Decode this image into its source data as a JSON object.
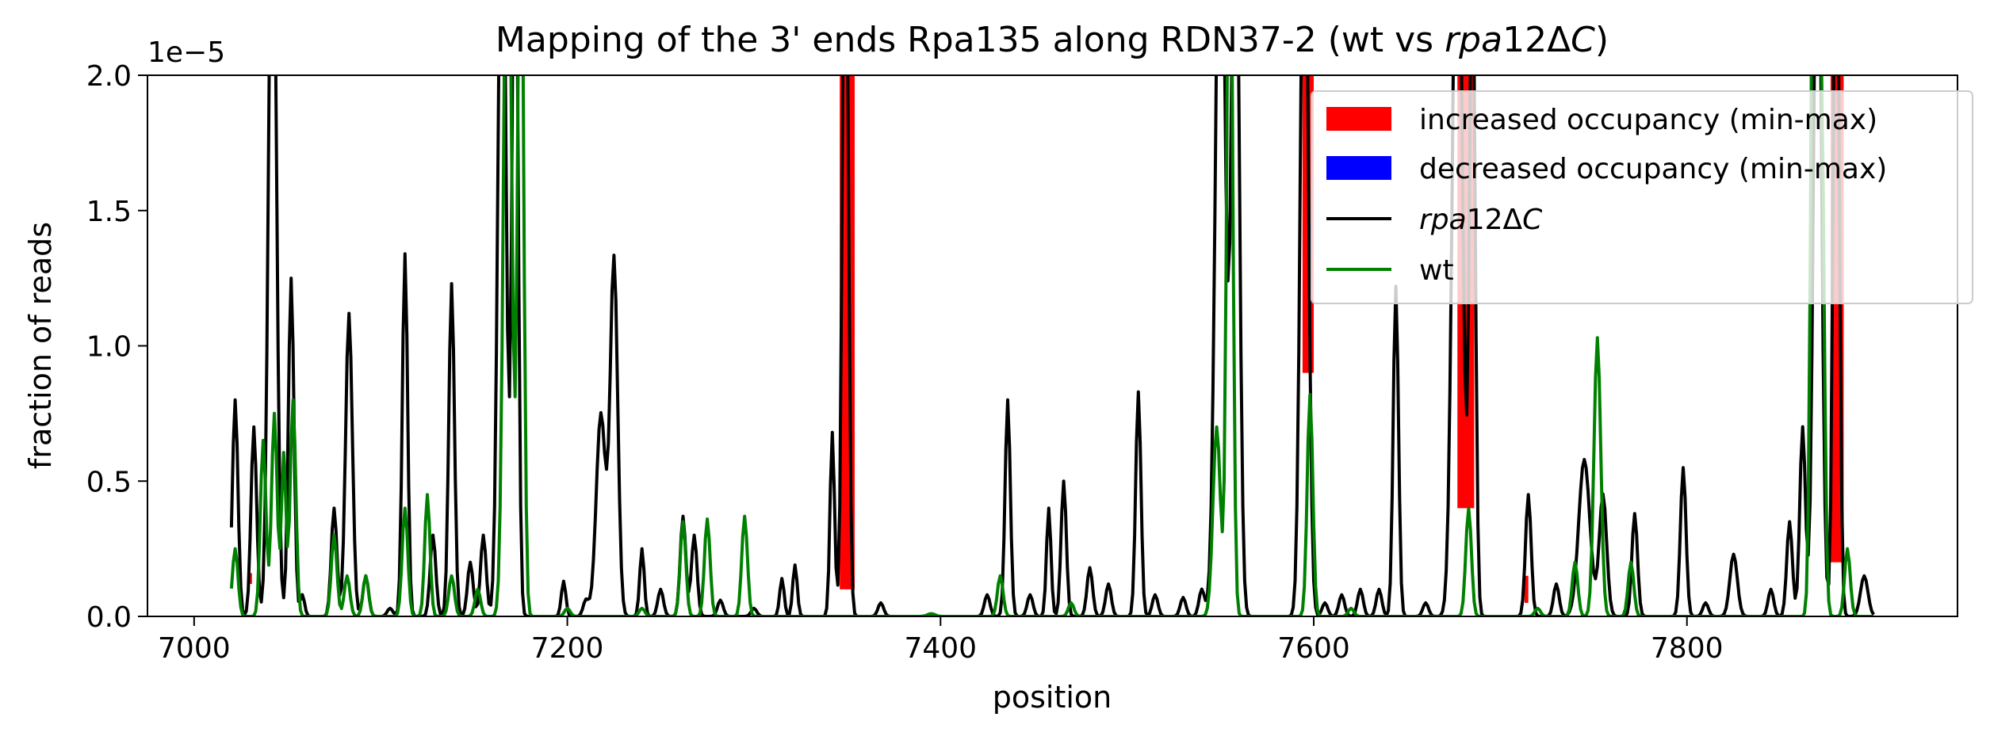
{
  "chart_data": {
    "type": "line",
    "title": "Mapping of the 3' ends Rpa135 along RDN37-2 (wt vs rpa12ΔC)",
    "title_parts": {
      "prefix": "Mapping of the 3' ends Rpa135 along RDN37-2 (wt vs ",
      "italic1": "rpa",
      "mid": "12Δ",
      "italic2": "C",
      "suffix": ")"
    },
    "xlabel": "position",
    "ylabel": "fraction of reads",
    "y_offset_label": "1e−5",
    "xlim": [
      6975,
      7945
    ],
    "ylim": [
      0,
      2.0
    ],
    "y_scale_factor": 1e-05,
    "xticks": [
      7000,
      7200,
      7400,
      7600,
      7800
    ],
    "yticks": [
      0.0,
      0.5,
      1.0,
      1.5,
      2.0
    ],
    "ytick_labels": [
      "0.0",
      "0.5",
      "1.0",
      "1.5",
      "2.0"
    ],
    "grid": false,
    "legend_position": "top-right",
    "legend": [
      {
        "label": "increased occupancy (min-max)",
        "kind": "patch",
        "color": "#ff0000"
      },
      {
        "label": "decreased occupancy (min-max)",
        "kind": "patch",
        "color": "#0000ff"
      },
      {
        "label_italic": "rpa",
        "label_rest": "12Δ",
        "label_italic2": "C",
        "kind": "line",
        "color": "#000000"
      },
      {
        "label": "wt",
        "kind": "line",
        "color": "#008000"
      }
    ],
    "series": [
      {
        "name": "rpa12ΔC",
        "color": "#000000",
        "peaks": [
          [
            7022,
            0.8,
            1.5
          ],
          [
            7032,
            0.7,
            1.5
          ],
          [
            7042,
            3.0,
            2.0
          ],
          [
            7052,
            1.25,
            1.5
          ],
          [
            7058,
            0.08,
            1.2
          ],
          [
            7075,
            0.4,
            1.5
          ],
          [
            7083,
            1.12,
            1.8
          ],
          [
            7092,
            0.15,
            1.5
          ],
          [
            7105,
            0.03,
            1.5
          ],
          [
            7113,
            1.34,
            1.4
          ],
          [
            7128,
            0.3,
            1.5
          ],
          [
            7138,
            1.23,
            1.5
          ],
          [
            7148,
            0.2,
            1.5
          ],
          [
            7155,
            0.3,
            1.5
          ],
          [
            7165,
            3.0,
            2.0
          ],
          [
            7172,
            3.0,
            1.5
          ],
          [
            7198,
            0.13,
            1.2
          ],
          [
            7210,
            0.06,
            1.5
          ],
          [
            7218,
            0.75,
            2.5
          ],
          [
            7225,
            1.32,
            2.0
          ],
          [
            7240,
            0.25,
            1.2
          ],
          [
            7250,
            0.1,
            1.5
          ],
          [
            7262,
            0.37,
            1.5
          ],
          [
            7268,
            0.3,
            1.5
          ],
          [
            7282,
            0.06,
            1.5
          ],
          [
            7300,
            0.03,
            1.5
          ],
          [
            7315,
            0.14,
            1.2
          ],
          [
            7322,
            0.19,
            1.2
          ],
          [
            7342,
            0.68,
            1.2
          ],
          [
            7349,
            3.0,
            1.5
          ],
          [
            7368,
            0.05,
            1.5
          ],
          [
            7425,
            0.08,
            1.5
          ],
          [
            7436,
            0.8,
            1.4
          ],
          [
            7448,
            0.08,
            1.5
          ],
          [
            7458,
            0.4,
            1.2
          ],
          [
            7466,
            0.5,
            1.4
          ],
          [
            7480,
            0.18,
            1.5
          ],
          [
            7490,
            0.12,
            1.5
          ],
          [
            7506,
            0.83,
            1.4
          ],
          [
            7515,
            0.08,
            1.5
          ],
          [
            7530,
            0.07,
            1.5
          ],
          [
            7540,
            0.1,
            1.5
          ],
          [
            7550,
            3.0,
            2.5
          ],
          [
            7558,
            3.0,
            2.0
          ],
          [
            7595,
            3.0,
            2.0
          ],
          [
            7606,
            0.05,
            1.5
          ],
          [
            7615,
            0.08,
            1.5
          ],
          [
            7625,
            0.1,
            1.5
          ],
          [
            7635,
            0.1,
            1.5
          ],
          [
            7644,
            1.22,
            1.4
          ],
          [
            7660,
            0.05,
            1.5
          ],
          [
            7677,
            3.0,
            2.5
          ],
          [
            7685,
            2.5,
            1.5
          ],
          [
            7715,
            0.45,
            1.5
          ],
          [
            7730,
            0.12,
            1.5
          ],
          [
            7745,
            0.58,
            3.0
          ],
          [
            7755,
            0.45,
            2.0
          ],
          [
            7772,
            0.38,
            1.5
          ],
          [
            7798,
            0.55,
            1.5
          ],
          [
            7810,
            0.05,
            1.5
          ],
          [
            7825,
            0.23,
            2.0
          ],
          [
            7845,
            0.1,
            1.5
          ],
          [
            7855,
            0.35,
            1.5
          ],
          [
            7862,
            0.7,
            1.5
          ],
          [
            7870,
            3.0,
            2.0
          ],
          [
            7880,
            3.0,
            1.5
          ],
          [
            7895,
            0.15,
            2.0
          ]
        ]
      },
      {
        "name": "wt",
        "color": "#008000",
        "peaks": [
          [
            7022,
            0.25,
            1.5
          ],
          [
            7037,
            0.65,
            1.5
          ],
          [
            7043,
            0.75,
            1.5
          ],
          [
            7048,
            0.6,
            1.2
          ],
          [
            7053,
            0.8,
            1.5
          ],
          [
            7075,
            0.3,
            1.5
          ],
          [
            7082,
            0.15,
            1.5
          ],
          [
            7092,
            0.15,
            1.5
          ],
          [
            7113,
            0.4,
            1.5
          ],
          [
            7125,
            0.45,
            1.4
          ],
          [
            7138,
            0.15,
            1.5
          ],
          [
            7152,
            0.1,
            1.5
          ],
          [
            7168,
            3.0,
            2.0
          ],
          [
            7175,
            3.0,
            1.5
          ],
          [
            7200,
            0.03,
            1.5
          ],
          [
            7240,
            0.03,
            1.5
          ],
          [
            7262,
            0.35,
            1.5
          ],
          [
            7275,
            0.36,
            1.5
          ],
          [
            7295,
            0.37,
            1.5
          ],
          [
            7395,
            0.01,
            2.0
          ],
          [
            7432,
            0.15,
            1.5
          ],
          [
            7470,
            0.05,
            1.5
          ],
          [
            7548,
            0.7,
            2.0
          ],
          [
            7555,
            3.0,
            1.5
          ],
          [
            7598,
            0.82,
            1.5
          ],
          [
            7620,
            0.03,
            1.5
          ],
          [
            7683,
            0.4,
            1.5
          ],
          [
            7720,
            0.03,
            1.5
          ],
          [
            7740,
            0.2,
            1.5
          ],
          [
            7752,
            1.03,
            1.8
          ],
          [
            7770,
            0.2,
            1.5
          ],
          [
            7868,
            3.0,
            1.5
          ],
          [
            7872,
            2.0,
            1.5
          ],
          [
            7886,
            0.25,
            1.5
          ]
        ]
      }
    ],
    "increased_regions": [
      {
        "x0": 7029,
        "x1": 7031,
        "ymin": 0.12,
        "ymax": 0.16
      },
      {
        "x0": 7346,
        "x1": 7354,
        "ymin": 0.1,
        "ymax": 2.0
      },
      {
        "x0": 7594,
        "x1": 7600,
        "ymin": 0.9,
        "ymax": 2.0
      },
      {
        "x0": 7677,
        "x1": 7686,
        "ymin": 0.4,
        "ymax": 2.0
      },
      {
        "x0": 7713,
        "x1": 7715,
        "ymin": 0.05,
        "ymax": 0.15
      },
      {
        "x0": 7877,
        "x1": 7884,
        "ymin": 0.2,
        "ymax": 2.0
      }
    ]
  }
}
